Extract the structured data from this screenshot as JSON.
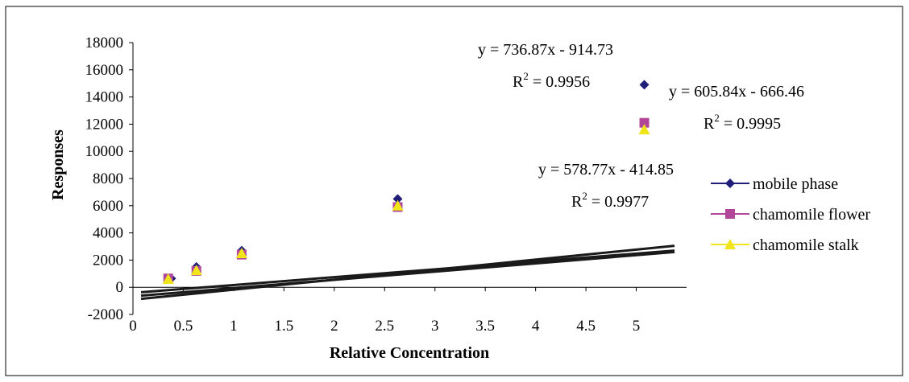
{
  "chart_data": {
    "type": "scatter",
    "xlabel": "Relative Concentration",
    "ylabel": "Responses",
    "xlim": [
      0,
      5.5
    ],
    "ylim": [
      -2000,
      18000
    ],
    "x_ticks": [
      "0",
      "0.5",
      "1",
      "1.5",
      "2",
      "2.5",
      "3",
      "3.5",
      "4",
      "4.5",
      "5"
    ],
    "y_ticks": [
      "-2000",
      "0",
      "2000",
      "4000",
      "6000",
      "8000",
      "10000",
      "12000",
      "14000",
      "16000",
      "18000"
    ],
    "x_tick_values": [
      0,
      0.5,
      1,
      1.5,
      2,
      2.5,
      3,
      3.5,
      4,
      4.5,
      5
    ],
    "y_tick_values": [
      -2000,
      0,
      2000,
      4000,
      6000,
      8000,
      10000,
      12000,
      14000,
      16000,
      18000
    ],
    "legend_position": "right",
    "series": [
      {
        "name": "mobile phase",
        "color": "#1f1f7a",
        "marker": "diamond",
        "x": [
          0.38,
          0.63,
          1.08,
          2.63,
          5.08
        ],
        "y": [
          650,
          1500,
          2700,
          6500,
          14900
        ],
        "trendline": {
          "slope": 736.87,
          "intercept": -914.73,
          "x_range": [
            0.08,
            5.38
          ]
        },
        "equation": "y = 736.87x - 914.73",
        "r2_label": "R",
        "r2_sup": "2",
        "r2_value": " = 0.9956"
      },
      {
        "name": "chamomile flower",
        "color": "#b2479a",
        "marker": "square",
        "x": [
          0.35,
          0.63,
          1.08,
          2.63,
          5.08
        ],
        "y": [
          650,
          1200,
          2400,
          5900,
          12100
        ],
        "trendline": {
          "slope": 605.84,
          "intercept": -666.46,
          "x_range": [
            0.08,
            5.38
          ]
        },
        "equation": "y = 605.84x - 666.46",
        "r2_label": "R",
        "r2_sup": "2",
        "r2_value": " = 0.9995"
      },
      {
        "name": "chamomile stalk",
        "color": "#f0e41b",
        "marker": "triangle",
        "x": [
          0.35,
          0.63,
          1.08,
          2.63,
          5.08
        ],
        "y": [
          600,
          1250,
          2500,
          6000,
          11600
        ],
        "trendline": {
          "slope": 578.77,
          "intercept": -414.85,
          "x_range": [
            0.08,
            5.38
          ]
        },
        "equation": "y = 578.77x - 414.85",
        "r2_label": "R",
        "r2_sup": "2",
        "r2_value": " = 0.9977"
      }
    ]
  }
}
